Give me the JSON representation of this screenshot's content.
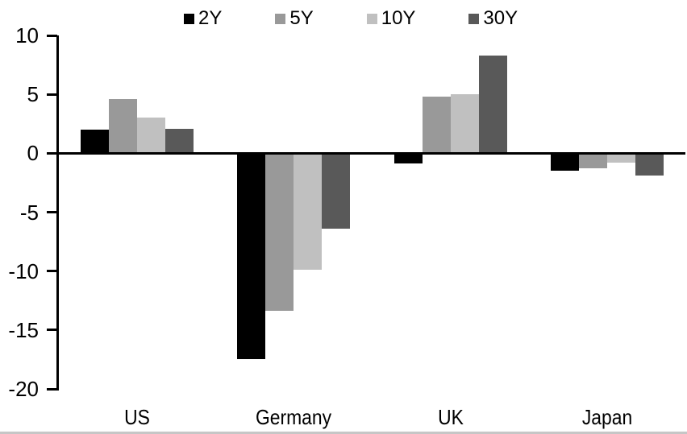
{
  "chart_data": {
    "type": "bar",
    "title": "",
    "xlabel": "",
    "ylabel": "",
    "categories": [
      "US",
      "Germany",
      "UK",
      "Japan"
    ],
    "series": [
      {
        "name": "2Y",
        "color": "#000000",
        "values": [
          2.0,
          -17.5,
          -0.9,
          -1.5
        ]
      },
      {
        "name": "5Y",
        "color": "#999999",
        "values": [
          4.6,
          -13.4,
          4.8,
          -1.3
        ]
      },
      {
        "name": "10Y",
        "color": "#c0c0c0",
        "values": [
          3.0,
          -9.9,
          5.0,
          -0.8
        ]
      },
      {
        "name": "30Y",
        "color": "#595959",
        "values": [
          2.1,
          -6.4,
          8.3,
          -1.9
        ]
      }
    ],
    "ylim": [
      -20,
      10
    ],
    "yticks": [
      10,
      5,
      0,
      -5,
      -10,
      -15,
      -20
    ],
    "grid": false,
    "legend_position": "top",
    "axis_color": "#000000",
    "background_color": "#ffffff"
  }
}
